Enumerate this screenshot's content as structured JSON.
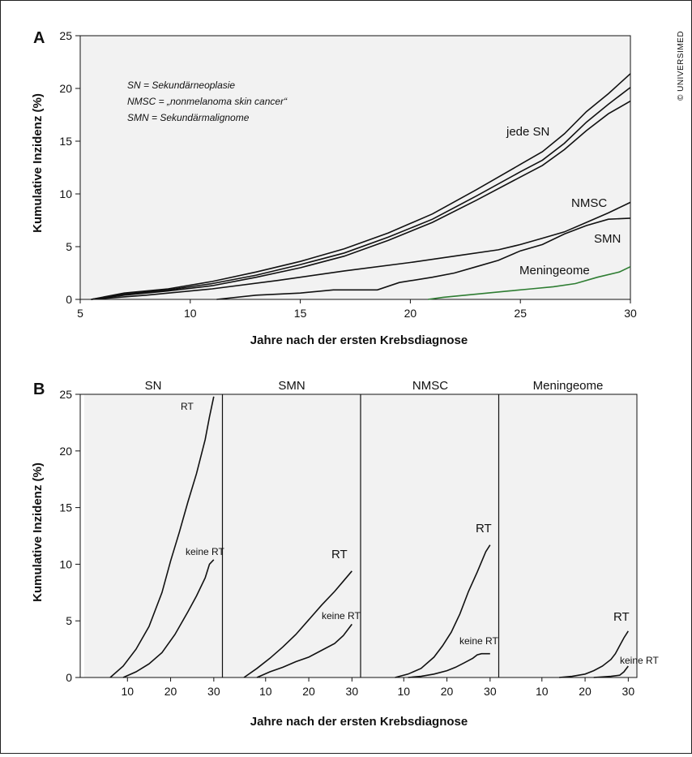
{
  "copyright": "© UNIVERSIMED",
  "colors": {
    "background": "#f2f2f2",
    "line": "#111111",
    "highlight": "#2e7d32"
  },
  "chart_data": [
    {
      "panel": "A",
      "type": "line",
      "xlabel": "Jahre nach der ersten Krebsdiagnose",
      "ylabel": "Kumulative Inzidenz (%)",
      "xlim": [
        5,
        30
      ],
      "ylim": [
        0,
        25
      ],
      "xticks": [
        5,
        10,
        15,
        20,
        25,
        30
      ],
      "yticks": [
        0,
        5,
        10,
        15,
        20,
        25
      ],
      "grid": false,
      "legend": [
        "SN = Sekundärneoplasie",
        "NMSC = „nonmelanoma skin cancer“",
        "SMN = Sekundärmalignome"
      ],
      "series": [
        {
          "name": "jede SN",
          "color": "#111111",
          "x": [
            5.5,
            7,
            9,
            11,
            13,
            15,
            17,
            19,
            21,
            23,
            25,
            26,
            27,
            28,
            29,
            30
          ],
          "y": [
            0,
            0.6,
            1.0,
            1.7,
            2.6,
            3.6,
            4.8,
            6.3,
            8.1,
            10.4,
            12.8,
            14.0,
            15.7,
            17.8,
            19.5,
            21.4
          ]
        },
        {
          "name": "",
          "color": "#111111",
          "x": [
            5.5,
            7,
            9,
            11,
            13,
            15,
            17,
            19,
            21,
            23,
            25,
            26,
            27,
            28,
            29,
            30
          ],
          "y": [
            0,
            0.5,
            0.9,
            1.5,
            2.3,
            3.3,
            4.4,
            5.9,
            7.6,
            9.8,
            12.1,
            13.2,
            14.8,
            16.8,
            18.5,
            20.1
          ]
        },
        {
          "name": "",
          "color": "#111111",
          "x": [
            5.5,
            7,
            9,
            11,
            13,
            15,
            17,
            19,
            21,
            23,
            25,
            26,
            27,
            28,
            29,
            30
          ],
          "y": [
            0,
            0.4,
            0.8,
            1.3,
            2.1,
            3.0,
            4.1,
            5.6,
            7.3,
            9.4,
            11.6,
            12.7,
            14.2,
            16.0,
            17.6,
            18.8
          ]
        },
        {
          "name": "NMSC",
          "color": "#111111",
          "x": [
            5.5,
            8,
            11,
            14,
            17,
            20,
            22,
            24,
            25,
            26,
            27,
            28,
            29,
            30
          ],
          "y": [
            0,
            0.4,
            1.0,
            1.8,
            2.7,
            3.5,
            4.1,
            4.7,
            5.2,
            5.8,
            6.4,
            7.3,
            8.2,
            9.2
          ]
        },
        {
          "name": "SMN",
          "color": "#111111",
          "x": [
            11.2,
            13,
            15,
            16.5,
            17.5,
            18.5,
            19.5,
            21,
            22,
            23,
            24,
            25,
            26,
            27,
            28,
            29,
            30
          ],
          "y": [
            0,
            0.4,
            0.6,
            0.9,
            0.9,
            0.9,
            1.6,
            2.1,
            2.5,
            3.1,
            3.7,
            4.6,
            5.2,
            6.2,
            7.0,
            7.6,
            7.7
          ]
        },
        {
          "name": "Meningeome",
          "color": "#2e7d32",
          "x": [
            20.8,
            21.5,
            22.5,
            23.5,
            24.5,
            25.5,
            26.5,
            27.5,
            28.5,
            29.5,
            30
          ],
          "y": [
            0,
            0.2,
            0.4,
            0.6,
            0.8,
            1.0,
            1.2,
            1.5,
            2.1,
            2.6,
            3.1
          ]
        }
      ]
    },
    {
      "panel": "B",
      "type": "line",
      "xlabel": "Jahre nach der ersten Krebsdiagnose",
      "ylabel": "Kumulative Inzidenz (%)",
      "xlim": [
        0,
        32
      ],
      "ylim": [
        0,
        25
      ],
      "xticks": [
        10,
        20,
        30
      ],
      "yticks": [
        0,
        5,
        10,
        15,
        20,
        25
      ],
      "grid": false,
      "facets": [
        {
          "title": "SN",
          "series": [
            {
              "name": "RT",
              "x": [
                6,
                9,
                12,
                15,
                18,
                20,
                22,
                24,
                26,
                28,
                29,
                30
              ],
              "y": [
                0,
                1.0,
                2.5,
                4.5,
                7.5,
                10.3,
                12.8,
                15.5,
                18.0,
                21.0,
                23.0,
                24.8
              ]
            },
            {
              "name": "keine RT",
              "x": [
                9,
                12,
                15,
                18,
                21,
                24,
                26,
                28,
                29,
                30
              ],
              "y": [
                0,
                0.5,
                1.2,
                2.2,
                3.8,
                5.8,
                7.2,
                8.8,
                10.0,
                10.4
              ]
            }
          ]
        },
        {
          "title": "SMN",
          "series": [
            {
              "name": "RT",
              "x": [
                5,
                8,
                11,
                14,
                17,
                20,
                23,
                26,
                28,
                30
              ],
              "y": [
                0,
                0.8,
                1.7,
                2.7,
                3.8,
                5.1,
                6.4,
                7.6,
                8.5,
                9.4
              ]
            },
            {
              "name": "keine RT",
              "x": [
                8,
                11,
                14,
                17,
                20,
                23,
                26,
                28,
                30
              ],
              "y": [
                0,
                0.5,
                0.9,
                1.4,
                1.8,
                2.4,
                3.0,
                3.7,
                4.7
              ]
            }
          ]
        },
        {
          "title": "NMSC",
          "series": [
            {
              "name": "RT",
              "x": [
                8,
                11,
                14,
                17,
                19,
                21,
                23,
                25,
                27,
                29,
                30
              ],
              "y": [
                0,
                0.3,
                0.8,
                1.8,
                2.8,
                4.0,
                5.6,
                7.6,
                9.3,
                11.1,
                11.7
              ]
            },
            {
              "name": "keine RT",
              "x": [
                11,
                14,
                17,
                20,
                22,
                24,
                26,
                27,
                28,
                29,
                30
              ],
              "y": [
                0,
                0.1,
                0.3,
                0.6,
                0.9,
                1.3,
                1.7,
                2.0,
                2.1,
                2.1,
                2.1
              ]
            }
          ]
        },
        {
          "title": "Meningeome",
          "series": [
            {
              "name": "RT",
              "x": [
                14,
                17,
                20,
                22,
                24,
                26,
                27,
                28,
                29,
                30
              ],
              "y": [
                0,
                0.1,
                0.3,
                0.6,
                1.0,
                1.6,
                2.1,
                2.8,
                3.5,
                4.1
              ]
            },
            {
              "name": "keine RT",
              "x": [
                22,
                24,
                26,
                28,
                29,
                30
              ],
              "y": [
                0,
                0.05,
                0.1,
                0.2,
                0.5,
                1.0
              ]
            }
          ]
        }
      ]
    }
  ]
}
